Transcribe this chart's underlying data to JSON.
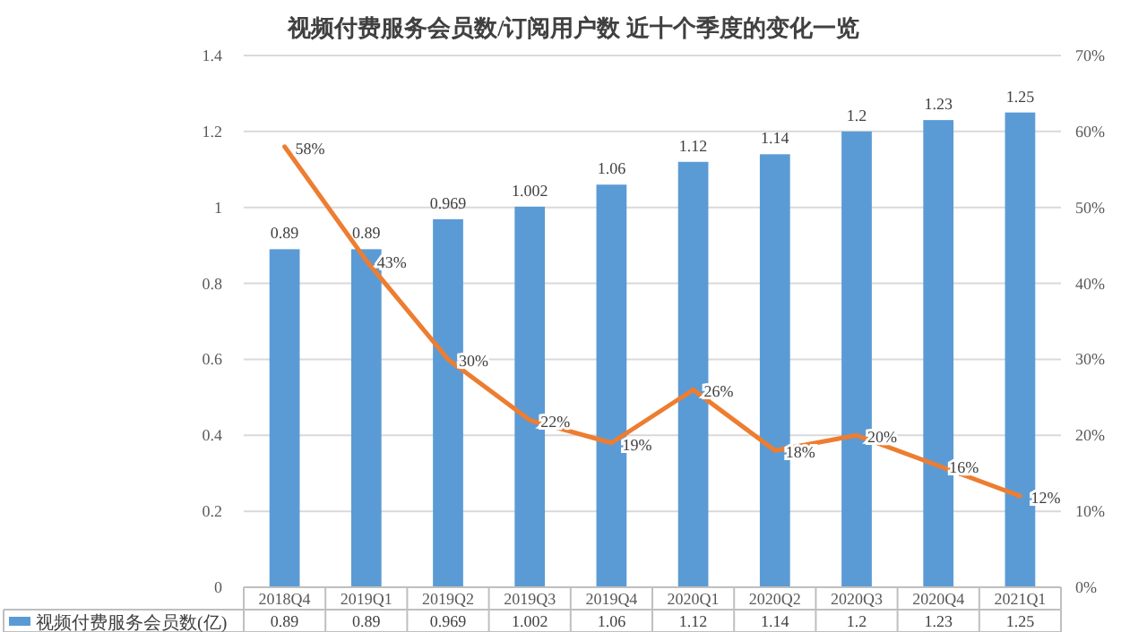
{
  "chart_data": {
    "type": "bar",
    "title": "视频付费服务会员数/订阅用户数 近十个季度的变化一览",
    "categories": [
      "2018Q4",
      "2019Q1",
      "2019Q2",
      "2019Q3",
      "2019Q4",
      "2020Q1",
      "2020Q2",
      "2020Q3",
      "2020Q4",
      "2021Q1"
    ],
    "series": [
      {
        "name": "视频付费服务会员数(亿)",
        "color": "#5b9bd5",
        "values": [
          0.89,
          0.89,
          0.969,
          1.002,
          1.06,
          1.12,
          1.14,
          1.2,
          1.23,
          1.25
        ],
        "value_labels": [
          "0.89",
          "0.89",
          "0.969",
          "1.002",
          "1.06",
          "1.12",
          "1.14",
          "1.2",
          "1.23",
          "1.25"
        ]
      },
      {
        "type": "line",
        "axis": "y2",
        "color": "#ed7d31",
        "values": [
          58,
          43,
          30,
          22,
          19,
          26,
          18,
          20,
          16,
          12
        ],
        "value_labels": [
          "58%",
          "43%",
          "30%",
          "22%",
          "19%",
          "26%",
          "18%",
          "20%",
          "16%",
          "12%"
        ]
      }
    ],
    "ylim": [
      0,
      1.4
    ],
    "yticks": [
      0,
      0.2,
      0.4,
      0.6,
      0.8,
      1,
      1.2,
      1.4
    ],
    "y2lim": [
      0,
      70
    ],
    "y2ticks": [
      {
        "value": 0,
        "label": "0%"
      },
      {
        "value": 10,
        "label": "10%"
      },
      {
        "value": 20,
        "label": "20%"
      },
      {
        "value": 30,
        "label": "30%"
      },
      {
        "value": 40,
        "label": "40%"
      },
      {
        "value": 50,
        "label": "50%"
      },
      {
        "value": 60,
        "label": "60%"
      },
      {
        "value": 70,
        "label": "70%"
      }
    ],
    "grid": "y",
    "legend": "bottom"
  }
}
